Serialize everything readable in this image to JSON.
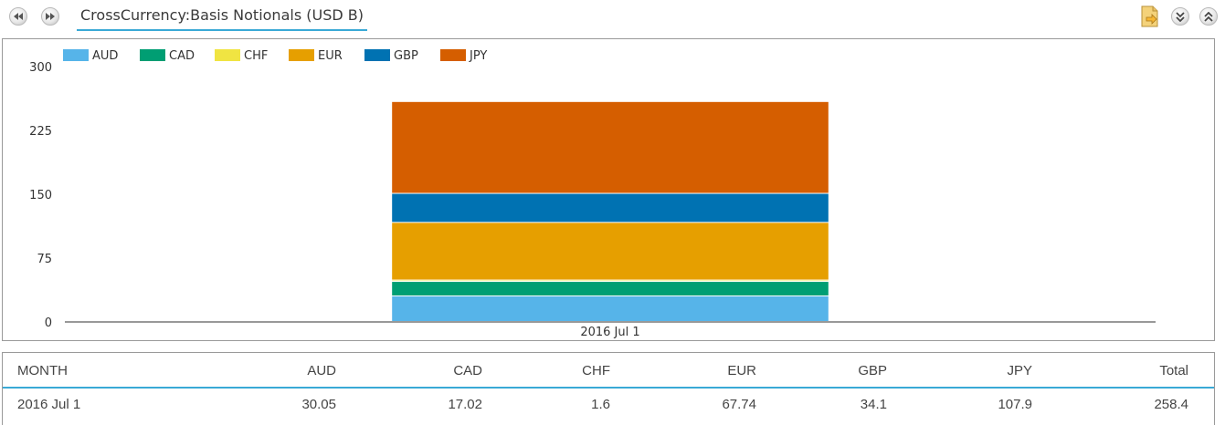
{
  "header": {
    "title": "CrossCurrency:Basis Notionals (USD B)",
    "prev_icon": "rewind-icon",
    "next_icon": "fast-forward-icon",
    "export_icon": "export-document-icon",
    "collapse_icon": "chevron-double-down-icon",
    "expand_icon": "chevron-double-up-icon"
  },
  "colors": {
    "AUD": "#56b4e9",
    "CAD": "#009e73",
    "CHF": "#f0e442",
    "EUR": "#e69f00",
    "GBP": "#0072b2",
    "JPY": "#d55e00",
    "accent": "#39a9d6"
  },
  "chart_data": {
    "type": "bar",
    "stacked": true,
    "categories": [
      "2016 Jul 1"
    ],
    "series": [
      {
        "name": "AUD",
        "values": [
          30.05
        ]
      },
      {
        "name": "CAD",
        "values": [
          17.02
        ]
      },
      {
        "name": "CHF",
        "values": [
          1.6
        ]
      },
      {
        "name": "EUR",
        "values": [
          67.74
        ]
      },
      {
        "name": "GBP",
        "values": [
          34.1
        ]
      },
      {
        "name": "JPY",
        "values": [
          107.9
        ]
      }
    ],
    "ylim": [
      0,
      300
    ],
    "yticks": [
      "0",
      "75",
      "150",
      "225",
      "300"
    ],
    "legend_position": "top-left",
    "grid": false
  },
  "table": {
    "columns": [
      "MONTH",
      "AUD",
      "CAD",
      "CHF",
      "EUR",
      "GBP",
      "JPY",
      "Total"
    ],
    "rows": [
      [
        "2016 Jul 1",
        "30.05",
        "17.02",
        "1.6",
        "67.74",
        "34.1",
        "107.9",
        "258.4"
      ]
    ]
  }
}
